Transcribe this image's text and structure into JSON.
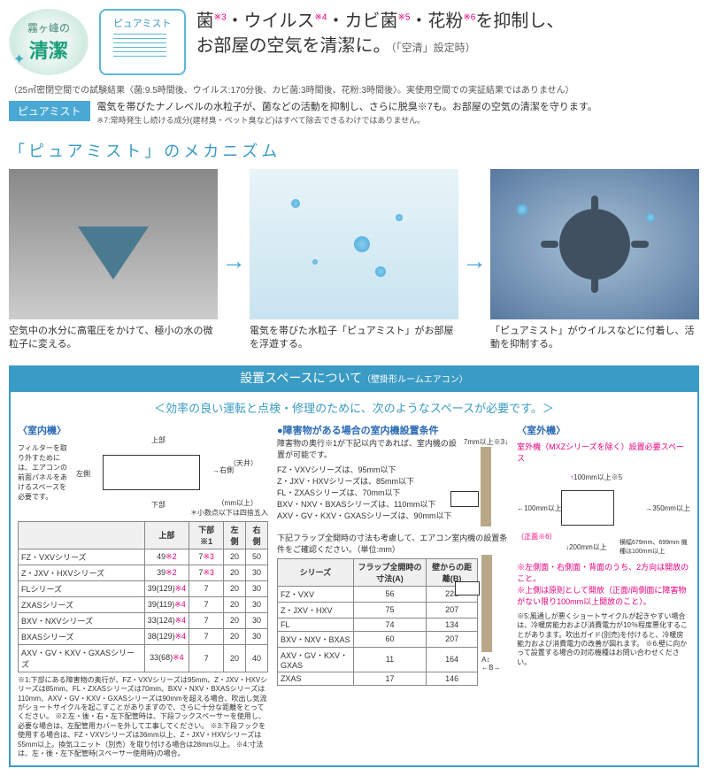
{
  "header": {
    "badge_green_top": "霧ヶ峰の",
    "badge_green_main": "清潔",
    "badge_box_title": "ピュアミスト",
    "headline_parts": [
      "菌",
      "・ウイルス",
      "・カビ菌",
      "・花粉",
      "を抑制し、",
      "お部屋の空気を清潔に。"
    ],
    "headline_sups": [
      "※3",
      "※4",
      "※5",
      "※6"
    ],
    "headline_sub": "（「空清」設定時）",
    "test_note": "（25㎡密閉空間での試験結果〈菌:9.5時間後、ウイルス:170分後、カビ菌:3時間後、花粉:3時間後〉。実使用空間での実証結果ではありません）"
  },
  "pure_mist": {
    "tag": "ピュアミスト",
    "text": "電気を帯びたナノレベルの水粒子が、菌などの活動を抑制し、さらに脱臭※7も。お部屋の空気の清潔を守ります。",
    "small": "※7:常時発生し続ける成分(建材臭・ペット臭など)はすべて除去できるわけではありません。"
  },
  "mechanism": {
    "title": "「ピュアミスト」のメカニズム",
    "panels": [
      {
        "caption": "空気中の水分に高電圧をかけて、極小の水の微粒子に変える。"
      },
      {
        "caption": "電気を帯びた水粒子「ピュアミスト」がお部屋を浮遊する。"
      },
      {
        "caption": "「ピュアミスト」がウイルスなどに付着し、活動を抑制する。"
      }
    ]
  },
  "install": {
    "header": "設置スペースについて",
    "header_sub": "（壁掛形ルームエアコン）",
    "notice": "＜効率の良い運転と点検・修理のために、次のようなスペースが必要です。＞",
    "indoor_label": "〈室内機〉",
    "indoor_note": "フィルターを取り外すためには、エアコンの前面パネルをあけるスペースを必要です。",
    "diagram_labels": {
      "top": "上部",
      "bottom": "下部",
      "left": "左側",
      "right": "右側",
      "ceiling": "（天井）",
      "unit": "（mm以上）"
    },
    "diagram_footnote": "＊小数点以下は四捨五入",
    "table1": {
      "columns": [
        "",
        "上部",
        "下部※1",
        "左側",
        "右側"
      ],
      "rows": [
        [
          "FZ・VXVシリーズ",
          "49※2",
          "7※3",
          "20",
          "50"
        ],
        [
          "Z・JXV・HXVシリーズ",
          "39※2",
          "7※3",
          "20",
          "30"
        ],
        [
          "FLシリーズ",
          "39(129)※4",
          "7",
          "20",
          "30"
        ],
        [
          "ZXASシリーズ",
          "39(119)※4",
          "7",
          "20",
          "30"
        ],
        [
          "BXV・NXVシリーズ",
          "33(124)※4",
          "7",
          "20",
          "30"
        ],
        [
          "BXASシリーズ",
          "38(129)※4",
          "7",
          "20",
          "30"
        ],
        [
          "AXV・GV・KXV・GXASシリーズ",
          "33(68)※4",
          "7",
          "20",
          "40"
        ]
      ]
    },
    "footnotes1": "※1:下部にある障害物の奥行が、FZ・VXVシリーズは95mm、Z・JXV・HXVシリーズは85mm、FL・ZXASシリーズは70mm、BXV・NXV・BXASシリーズは110mm、AXV・GV・KXV・GXASシリーズは90mmを超える場合、吹出し気流がショートサイクルを起こすことがありますので、さらに十分な距離をとってください。\n※2:左・後・右・左下配管時は、下段フックスペーサーを使用し、必要な場合は、左配管用カバーを外して工事してください。\n※3:下段フックを使用する場合は、FZ・VXVシリーズは36mm以上、Z・JXV・HXVシリーズは55mm以上。換気ユニット（別売）を取り付ける場合は28mm以上。\n※4:寸法は、左・後・左下配管時(スペーサー使用時)の場合。",
    "col2_title": "●障害物がある場合の室内機設置条件",
    "col2_text": "障害物の奥行※1が下記以内であれば、室内機の設置が可能です。",
    "col2_list": [
      "FZ・VXVシリーズは、95mm以下",
      "Z・JXV・HXVシリーズは、85mm以下",
      "FL・ZXASシリーズは、70mm以下",
      "BXV・NXV・BXASシリーズは、110mm以下",
      "AXV・GV・KXV・GXASシリーズは、90mm以下"
    ],
    "col2_side": "7mm以上※3↓",
    "col2_note": "下記フラップ全開時の寸法も考慮して、エアコン室内機の設置条件をご確認ください。（単位:mm）",
    "table2": {
      "columns": [
        "シリーズ",
        "フラップ全開時の寸法(A)",
        "壁からの距離(B)"
      ],
      "rows": [
        [
          "FZ・VXV",
          "56",
          "228"
        ],
        [
          "Z・JXV・HXV",
          "75",
          "207"
        ],
        [
          "FL",
          "74",
          "134"
        ],
        [
          "BXV・NXV・BXAS",
          "60",
          "207"
        ],
        [
          "AXV・GV・KXV・GXAS",
          "11",
          "164"
        ],
        [
          "ZXAS",
          "17",
          "146"
        ]
      ]
    },
    "outdoor_label": "〈室外機〉",
    "outdoor_model": "室外機（MXZシリーズを除く）設置必要スペース",
    "outdoor_dims": {
      "top": "100mm以上※5",
      "left": "100mm以上",
      "right": "350mm以上",
      "front": "200mm以上",
      "front_label": "（正面※6）"
    },
    "outdoor_size": "横幅679mm、699mm 機種は100mm以上",
    "outdoor_notes": [
      "※左側面・右側面・背面のうち、2方向は開放のこと。",
      "※上側は原則として開放（正面/両側面に障害物がない限り100mm以上開放のこと）。"
    ],
    "outdoor_foot": "※5:風通しが悪くショートサイクルが起きやすい場合は、冷暖房能力および消費電力が10％程度悪化することがあります。吹出ガイド(別売)を付けると、冷暖房能力および消費電力の改善が図れます。\n※6:壁に向かって設置する場合の対応機種はお問い合わせください。"
  },
  "colors": {
    "accent": "#3a9bc4",
    "magenta": "#e6007e",
    "blue": "#2a6ab4"
  }
}
